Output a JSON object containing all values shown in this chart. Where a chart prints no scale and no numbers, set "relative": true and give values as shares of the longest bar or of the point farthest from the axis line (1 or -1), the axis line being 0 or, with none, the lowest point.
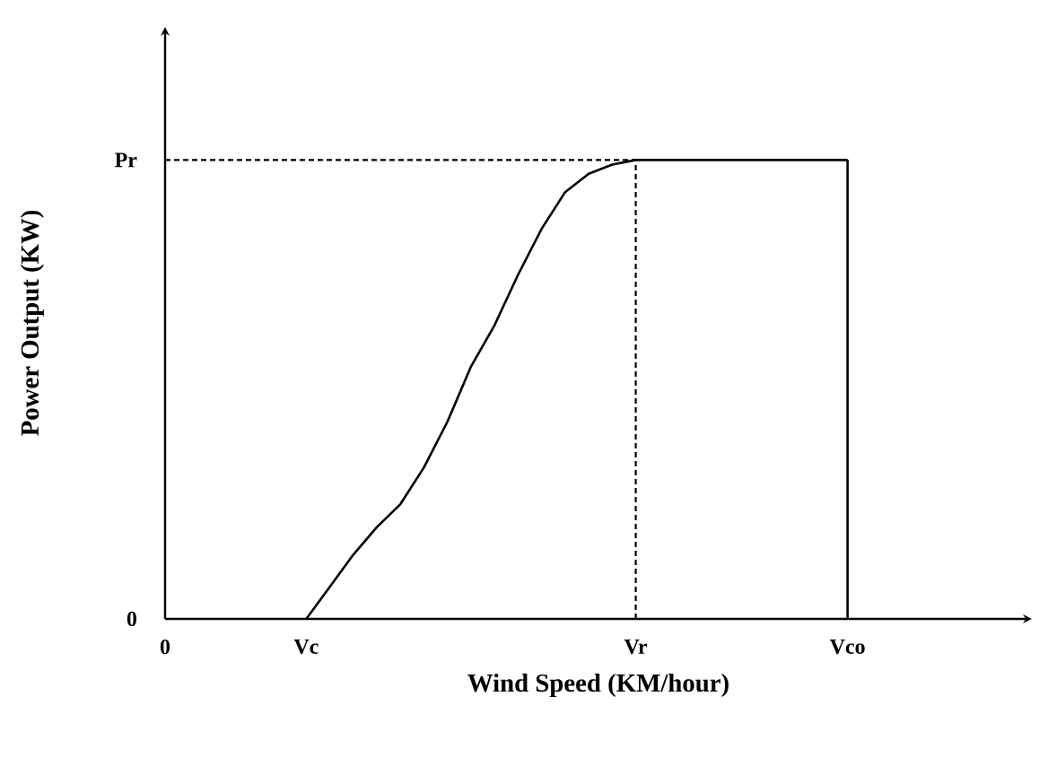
{
  "chart_data": {
    "type": "line",
    "relative": true,
    "xlabel": "Wind Speed (KM/hour)",
    "ylabel": "Power Output (KW)",
    "categories": [
      "0",
      null,
      null,
      null,
      null,
      null,
      "Vc",
      null,
      null,
      null,
      null,
      null,
      null,
      null,
      null,
      null,
      null,
      null,
      null,
      null,
      "Vr",
      null,
      null,
      null,
      null,
      null,
      null,
      null,
      null,
      "Vco"
    ],
    "series": [
      {
        "color": "#000000",
        "values": [
          null,
          null,
          null,
          null,
          null,
          null,
          0,
          0.07,
          0.14,
          0.2,
          0.25,
          0.33,
          0.43,
          0.55,
          0.64,
          0.75,
          0.85,
          0.93,
          0.97,
          0.99,
          1.0,
          1.0,
          1.0,
          1.0,
          1.0,
          1.0,
          1.0,
          1.0,
          1.0,
          1.0
        ]
      }
    ],
    "annotations": [
      "Pr",
      "0"
    ],
    "ref_lines": [
      {
        "axis": "y",
        "value": 1.0,
        "color": "#000000",
        "line_style": "dashed"
      },
      {
        "axis": "x",
        "value": "Vr",
        "color": "#000000",
        "line_style": "dashed"
      },
      {
        "axis": "x",
        "value": "Vco",
        "color": "#000000",
        "line_style": "solid"
      }
    ],
    "marker": "none",
    "line_style": "solid"
  }
}
